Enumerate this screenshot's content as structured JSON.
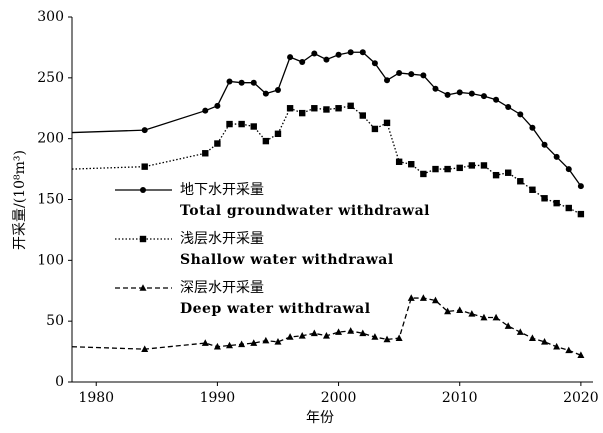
{
  "chart_data": {
    "type": "line",
    "x_label": "年份",
    "y_label": "开采量/(10⁸m³)",
    "x": [
      1978,
      1984,
      1989,
      1990,
      1991,
      1992,
      1993,
      1994,
      1995,
      1996,
      1997,
      1998,
      1999,
      2000,
      2001,
      2002,
      2003,
      2004,
      2005,
      2006,
      2007,
      2008,
      2009,
      2010,
      2011,
      2012,
      2013,
      2014,
      2015,
      2016,
      2017,
      2018,
      2019,
      2020
    ],
    "series": [
      {
        "name": "地下水开采量",
        "name_en": "Total groundwater withdrawal",
        "color": "#000000",
        "marker": "circle",
        "linestyle": "solid",
        "values": [
          205,
          207,
          223,
          227,
          247,
          246,
          246,
          237,
          240,
          267,
          263,
          270,
          265,
          269,
          271,
          271,
          262,
          248,
          254,
          253,
          252,
          241,
          236,
          238,
          237,
          235,
          232,
          226,
          220,
          209,
          195,
          185,
          175,
          161
        ]
      },
      {
        "name": "浅层水开采量",
        "name_en": "Shallow water withdrawal",
        "color": "#000000",
        "marker": "square",
        "linestyle": "dotted",
        "values": [
          175,
          177,
          188,
          196,
          212,
          212,
          210,
          198,
          204,
          225,
          221,
          225,
          224,
          225,
          227,
          219,
          208,
          213,
          181,
          179,
          171,
          175,
          175,
          176,
          178,
          178,
          170,
          172,
          165,
          158,
          151,
          147,
          143,
          138
        ]
      },
      {
        "name": "深层水开采量",
        "name_en": "Deep water withdrawal",
        "color": "#000000",
        "marker": "triangle",
        "linestyle": "dashed",
        "values": [
          29,
          27,
          32,
          29,
          30,
          31,
          32,
          34,
          33,
          37,
          38,
          40,
          38,
          41,
          42,
          40,
          37,
          35,
          36,
          69,
          69,
          67,
          58,
          59,
          56,
          53,
          53,
          46,
          41,
          36,
          33,
          29,
          26,
          22
        ]
      }
    ],
    "xlim": [
      1978,
      2021
    ],
    "xticks": [
      1980,
      1990,
      2000,
      2010,
      2020
    ],
    "ylim": [
      0,
      300
    ],
    "yticks": [
      0,
      50,
      100,
      150,
      200,
      250,
      300
    ]
  }
}
